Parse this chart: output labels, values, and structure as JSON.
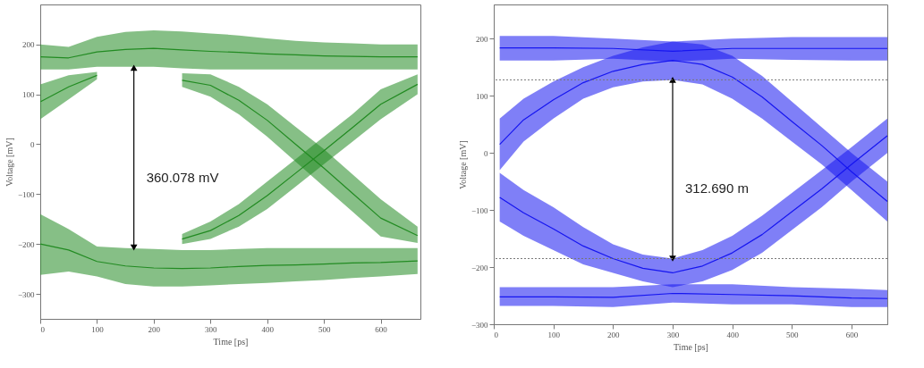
{
  "chart_data": [
    {
      "type": "line",
      "xlabel": "Time [ps]",
      "ylabel": "Voltage [mV]",
      "xlim": [
        0,
        670
      ],
      "xticks": [
        0,
        100,
        200,
        300,
        400,
        500,
        600
      ],
      "ylim": [
        -350,
        280
      ],
      "yticks": [
        -300,
        -200,
        -100,
        0,
        100,
        200
      ],
      "grid": false,
      "annotations": [
        "360.078 mV"
      ],
      "series": [
        {
          "color": "#228b22",
          "x": [
            0,
            50,
            100,
            150,
            200,
            250,
            300,
            350,
            400,
            450,
            500,
            550,
            600,
            665
          ],
          "values": [
            175,
            173,
            185,
            190,
            192,
            189,
            186,
            184,
            181,
            179,
            177,
            176,
            175,
            175
          ],
          "lower": [
            150,
            150,
            155,
            155,
            155,
            152,
            150,
            150,
            150,
            150,
            150,
            150,
            150,
            150
          ],
          "upper": [
            200,
            195,
            215,
            225,
            228,
            226,
            222,
            218,
            212,
            207,
            204,
            202,
            200,
            200
          ]
        },
        {
          "color": "#238c23",
          "x": [
            0,
            50,
            100
          ],
          "values": [
            85,
            115,
            138
          ],
          "lower": [
            50,
            90,
            130
          ],
          "upper": [
            120,
            138,
            145
          ]
        },
        {
          "color": "#228b22",
          "x": [
            0,
            50,
            100,
            150,
            200,
            250,
            300,
            350,
            400,
            450,
            500,
            550,
            600,
            665
          ],
          "values": [
            -200,
            -212,
            -235,
            -244,
            -248,
            -249,
            -248,
            -245,
            -243,
            -242,
            -240,
            -238,
            -237,
            -234
          ],
          "lower": [
            -262,
            -255,
            -265,
            -280,
            -285,
            -285,
            -283,
            -280,
            -278,
            -275,
            -272,
            -268,
            -265,
            -260
          ],
          "upper": [
            -140,
            -170,
            -205,
            -208,
            -210,
            -212,
            -212,
            -210,
            -208,
            -208,
            -208,
            -208,
            -208,
            -208
          ]
        },
        {
          "color": "#228b22",
          "x": [
            250,
            300,
            350,
            400,
            450,
            500,
            550,
            600,
            665
          ],
          "values": [
            128,
            118,
            88,
            48,
            0,
            -48,
            -98,
            -148,
            -183
          ],
          "lower": [
            115,
            95,
            60,
            15,
            -35,
            -85,
            -135,
            -185,
            -198
          ],
          "upper": [
            142,
            140,
            115,
            80,
            35,
            -10,
            -60,
            -110,
            -165
          ]
        },
        {
          "color": "#218a21",
          "x": [
            250,
            300,
            350,
            400,
            450,
            500,
            550,
            600,
            665
          ],
          "values": [
            -190,
            -173,
            -143,
            -103,
            -58,
            -13,
            33,
            80,
            120
          ],
          "lower": [
            -200,
            -190,
            -165,
            -130,
            -85,
            -40,
            5,
            50,
            100
          ],
          "upper": [
            -180,
            -155,
            -120,
            -75,
            -30,
            15,
            60,
            110,
            140
          ]
        },
        {
          "color": "#000000",
          "x": [
            165,
            165
          ],
          "values": [
            153,
            -207
          ],
          "marker": "triangle"
        }
      ]
    },
    {
      "type": "line",
      "xlabel": "Time [ps]",
      "ylabel": "Voltage [mV]",
      "xlim": [
        0,
        660
      ],
      "xticks": [
        0,
        100,
        200,
        300,
        400,
        500,
        600
      ],
      "ylim": [
        -300,
        260
      ],
      "yticks": [
        -300,
        -200,
        -100,
        0,
        100,
        200
      ],
      "grid": false,
      "annotations": [
        "312.690 m"
      ],
      "ref_lines": [
        {
          "axis": "y",
          "value": 128,
          "color": "#777777",
          "line_style": "dotted"
        },
        {
          "axis": "y",
          "value": -185,
          "color": "#777777",
          "line_style": "dotted"
        }
      ],
      "series": [
        {
          "color": "#1515f0",
          "x": [
            10,
            100,
            200,
            300,
            400,
            500,
            600,
            660
          ],
          "values": [
            184,
            184,
            183,
            178,
            183,
            183,
            183,
            183
          ],
          "lower": [
            162,
            162,
            165,
            160,
            165,
            163,
            162,
            162
          ],
          "upper": [
            205,
            205,
            200,
            195,
            200,
            203,
            203,
            203
          ]
        },
        {
          "color": "#1515f0",
          "x": [
            10,
            100,
            200,
            300,
            400,
            500,
            600,
            660
          ],
          "values": [
            -252,
            -252,
            -253,
            -246,
            -248,
            -250,
            -254,
            -255
          ],
          "lower": [
            -268,
            -268,
            -270,
            -262,
            -265,
            -265,
            -270,
            -270
          ],
          "upper": [
            -235,
            -235,
            -235,
            -230,
            -230,
            -235,
            -238,
            -240
          ]
        },
        {
          "color": "#1515f0",
          "x": [
            10,
            50,
            100,
            150,
            200,
            250,
            300,
            350,
            400,
            450,
            500,
            550,
            600,
            660
          ],
          "values": [
            15,
            58,
            93,
            123,
            143,
            155,
            162,
            155,
            133,
            98,
            55,
            13,
            -33,
            -85
          ],
          "lower": [
            -30,
            20,
            60,
            95,
            115,
            125,
            128,
            120,
            95,
            60,
            20,
            -20,
            -65,
            -120
          ],
          "upper": [
            60,
            95,
            125,
            150,
            170,
            185,
            195,
            190,
            170,
            135,
            90,
            45,
            0,
            -50
          ]
        },
        {
          "color": "#1515f0",
          "x": [
            10,
            50,
            100,
            150,
            200,
            250,
            300,
            350,
            400,
            450,
            500,
            550,
            600,
            660
          ],
          "values": [
            -78,
            -105,
            -133,
            -163,
            -185,
            -202,
            -210,
            -198,
            -175,
            -143,
            -103,
            -63,
            -20,
            30
          ],
          "lower": [
            -120,
            -145,
            -170,
            -195,
            -210,
            -225,
            -235,
            -225,
            -205,
            -175,
            -135,
            -95,
            -50,
            0
          ],
          "upper": [
            -35,
            -65,
            -95,
            -130,
            -160,
            -178,
            -185,
            -170,
            -145,
            -110,
            -70,
            -30,
            10,
            60
          ]
        },
        {
          "color": "#000000",
          "x": [
            300,
            300
          ],
          "values": [
            128,
            -185
          ],
          "marker": "triangle"
        }
      ]
    }
  ]
}
